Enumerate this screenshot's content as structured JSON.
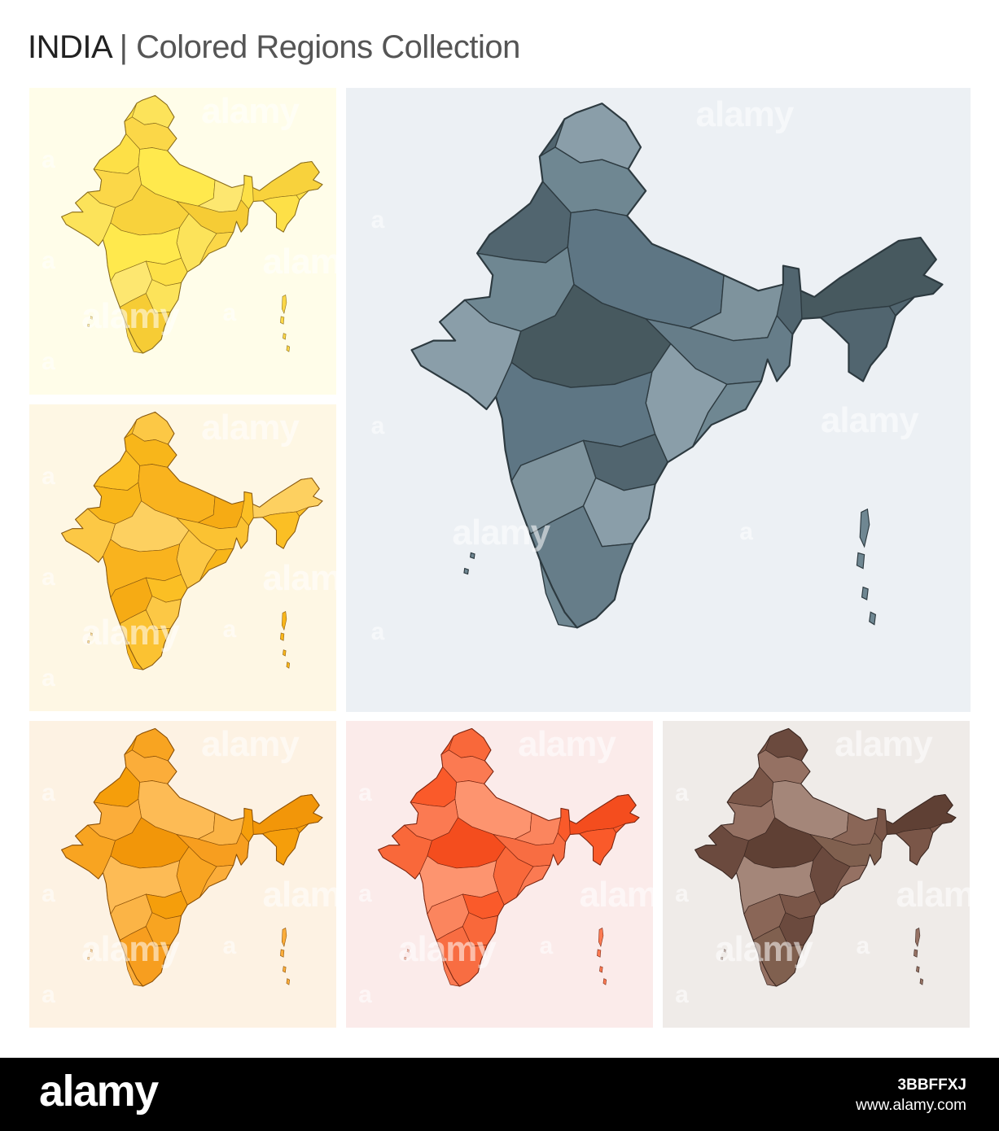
{
  "header": {
    "country": "INDIA",
    "separator": "|",
    "subtitle": "Colored Regions Collection"
  },
  "panels": [
    {
      "id": "yellow-light",
      "background": "#fffde9",
      "palette": [
        "#fde047",
        "#fbd748",
        "#fce35a",
        "#ffe94d",
        "#f8d23c",
        "#fde770",
        "#f6cc35"
      ],
      "outline": "#8a6d1c"
    },
    {
      "id": "yellow-orange",
      "background": "#fef7e4",
      "palette": [
        "#fbbf24",
        "#f8b61a",
        "#fcc845",
        "#f9b31e",
        "#fdd060",
        "#f6ab14",
        "#fbc232"
      ],
      "outline": "#8a5a10"
    },
    {
      "id": "slate",
      "background": "#ecf0f4",
      "palette": [
        "#51656f",
        "#6f8792",
        "#8a9ea9",
        "#5e7684",
        "#47595f",
        "#7e939d",
        "#667d89"
      ],
      "outline": "#2d3a40"
    },
    {
      "id": "orange",
      "background": "#fdf2e3",
      "palette": [
        "#f59e0b",
        "#fbad3a",
        "#f8a421",
        "#fdbb55",
        "#f29609",
        "#fbb446",
        "#f79e1f"
      ],
      "outline": "#8a4f06"
    },
    {
      "id": "red-orange",
      "background": "#fbebea",
      "palette": [
        "#fa5a2a",
        "#fb7a52",
        "#f9683a",
        "#fd946f",
        "#f44d1e",
        "#fb855e",
        "#f86d42"
      ],
      "outline": "#7c2510"
    },
    {
      "id": "brown",
      "background": "#efebe8",
      "palette": [
        "#7a5648",
        "#957163",
        "#6b4a3e",
        "#a48679",
        "#5f4034",
        "#8a6657",
        "#80604f"
      ],
      "outline": "#3a2620"
    }
  ],
  "watermark": {
    "text": "alamy",
    "letter": "a"
  },
  "footer": {
    "logo": "alamy",
    "image_id": "3BBFFXJ",
    "site": "www.alamy.com"
  }
}
